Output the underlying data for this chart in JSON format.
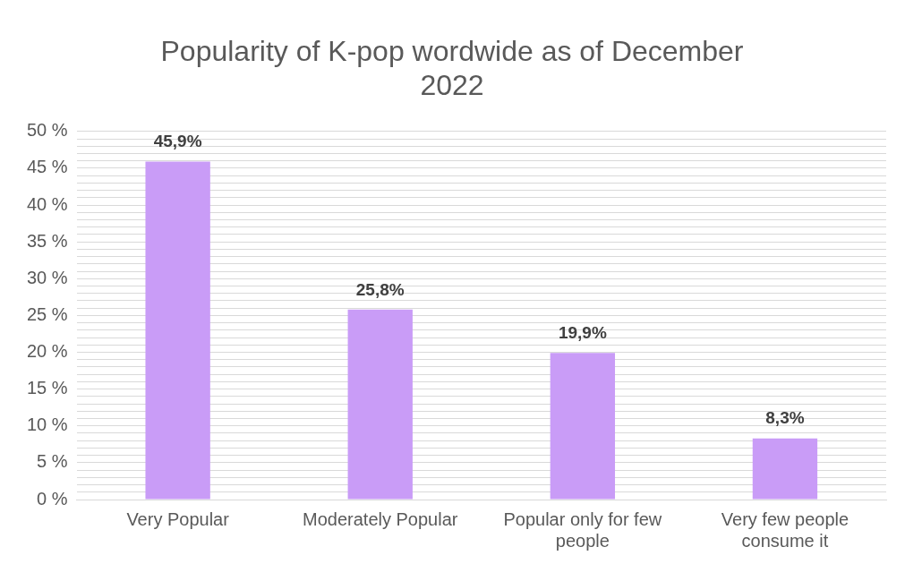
{
  "chart_data": {
    "type": "bar",
    "title": "Popularity of K-pop wordwide as of December 2022",
    "categories": [
      "Very Popular",
      "Moderately Popular",
      "Popular only for few people",
      "Very few people consume it"
    ],
    "values": [
      45.9,
      25.8,
      19.9,
      8.3
    ],
    "value_labels": [
      "45,9%",
      "25,8%",
      "19,9%",
      "8,3%"
    ],
    "color": "#c99cf7",
    "ylim": [
      0,
      50
    ],
    "yticks": [
      {
        "value": 0,
        "label": "0 %"
      },
      {
        "value": 1,
        "label": null
      },
      {
        "value": 2,
        "label": null
      },
      {
        "value": 3,
        "label": null
      },
      {
        "value": 4,
        "label": null
      },
      {
        "value": 5,
        "label": "5 %"
      },
      {
        "value": 6,
        "label": null
      },
      {
        "value": 7,
        "label": null
      },
      {
        "value": 8,
        "label": null
      },
      {
        "value": 9,
        "label": null
      },
      {
        "value": 10,
        "label": "10 %"
      },
      {
        "value": 11,
        "label": null
      },
      {
        "value": 12,
        "label": null
      },
      {
        "value": 13,
        "label": null
      },
      {
        "value": 14,
        "label": null
      },
      {
        "value": 15,
        "label": "15 %"
      },
      {
        "value": 16,
        "label": null
      },
      {
        "value": 17,
        "label": null
      },
      {
        "value": 18,
        "label": null
      },
      {
        "value": 19,
        "label": null
      },
      {
        "value": 20,
        "label": "20 %"
      },
      {
        "value": 21,
        "label": null
      },
      {
        "value": 22,
        "label": null
      },
      {
        "value": 23,
        "label": null
      },
      {
        "value": 24,
        "label": null
      },
      {
        "value": 25,
        "label": "25 %"
      },
      {
        "value": 26,
        "label": null
      },
      {
        "value": 27,
        "label": null
      },
      {
        "value": 28,
        "label": null
      },
      {
        "value": 29,
        "label": null
      },
      {
        "value": 30,
        "label": "30 %"
      },
      {
        "value": 31,
        "label": null
      },
      {
        "value": 32,
        "label": null
      },
      {
        "value": 33,
        "label": null
      },
      {
        "value": 34,
        "label": null
      },
      {
        "value": 35,
        "label": "35 %"
      },
      {
        "value": 36,
        "label": null
      },
      {
        "value": 37,
        "label": null
      },
      {
        "value": 38,
        "label": null
      },
      {
        "value": 39,
        "label": null
      },
      {
        "value": 40,
        "label": "40 %"
      },
      {
        "value": 41,
        "label": null
      },
      {
        "value": 42,
        "label": null
      },
      {
        "value": 43,
        "label": null
      },
      {
        "value": 44,
        "label": null
      },
      {
        "value": 45,
        "label": "45 %"
      },
      {
        "value": 46,
        "label": null
      },
      {
        "value": 47,
        "label": null
      },
      {
        "value": 48,
        "label": null
      },
      {
        "value": 49,
        "label": null
      },
      {
        "value": 50,
        "label": "50 %"
      }
    ],
    "grid": "y"
  }
}
